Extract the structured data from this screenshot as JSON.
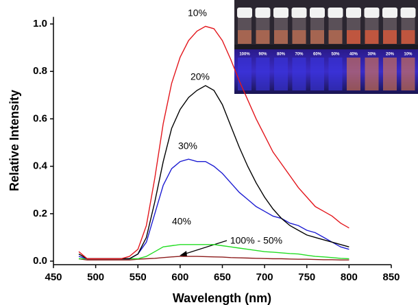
{
  "chart_data": {
    "type": "line",
    "xlabel": "Wavelength (nm)",
    "ylabel": "Relative Intensity",
    "xlim": [
      450,
      850
    ],
    "xticks": [
      450,
      500,
      550,
      600,
      650,
      700,
      750,
      800,
      850
    ],
    "ylim": [
      -0.015,
      1.03
    ],
    "yticks": [
      {
        "value": 0,
        "label": "0.0"
      },
      0.2,
      0.4,
      0.6,
      0.8,
      {
        "value": 1,
        "label": "1.0"
      }
    ],
    "grid": false,
    "x": [
      480,
      490,
      500,
      510,
      520,
      530,
      540,
      550,
      560,
      570,
      580,
      590,
      600,
      610,
      620,
      630,
      640,
      650,
      660,
      670,
      680,
      690,
      700,
      710,
      720,
      730,
      740,
      750,
      760,
      770,
      780,
      790,
      800
    ],
    "series": [
      {
        "name": "10%",
        "color": "#e3161c",
        "values": [
          0.04,
          0.01,
          0.01,
          0.01,
          0.01,
          0.01,
          0.02,
          0.05,
          0.15,
          0.35,
          0.58,
          0.75,
          0.86,
          0.93,
          0.97,
          0.99,
          0.98,
          0.93,
          0.85,
          0.76,
          0.68,
          0.6,
          0.53,
          0.46,
          0.41,
          0.36,
          0.31,
          0.27,
          0.23,
          0.21,
          0.19,
          0.16,
          0.14
        ]
      },
      {
        "name": "20%",
        "color": "#000000",
        "values": [
          0.03,
          0.01,
          0.01,
          0.01,
          0.01,
          0.01,
          0.01,
          0.03,
          0.1,
          0.25,
          0.42,
          0.56,
          0.64,
          0.69,
          0.72,
          0.74,
          0.72,
          0.66,
          0.57,
          0.48,
          0.4,
          0.33,
          0.27,
          0.22,
          0.18,
          0.15,
          0.13,
          0.11,
          0.1,
          0.09,
          0.08,
          0.07,
          0.06
        ]
      },
      {
        "name": "30%",
        "color": "#1c1cd2",
        "values": [
          0.02,
          0.01,
          0.01,
          0.01,
          0.01,
          0.01,
          0.01,
          0.03,
          0.08,
          0.2,
          0.32,
          0.39,
          0.42,
          0.43,
          0.42,
          0.42,
          0.4,
          0.37,
          0.33,
          0.29,
          0.26,
          0.23,
          0.21,
          0.19,
          0.18,
          0.16,
          0.15,
          0.13,
          0.12,
          0.1,
          0.08,
          0.06,
          0.05
        ]
      },
      {
        "name": "40%",
        "color": "#22dd22",
        "values": [
          0.01,
          0.01,
          0.01,
          0.01,
          0.01,
          0.01,
          0.01,
          0.01,
          0.02,
          0.04,
          0.06,
          0.065,
          0.07,
          0.07,
          0.07,
          0.07,
          0.07,
          0.065,
          0.06,
          0.055,
          0.05,
          0.045,
          0.04,
          0.038,
          0.035,
          0.032,
          0.03,
          0.025,
          0.02,
          0.018,
          0.015,
          0.012,
          0.01
        ]
      },
      {
        "name": "100% - 50%",
        "color": "#8b1a1a",
        "values": [
          0.01,
          0.005,
          0.005,
          0.005,
          0.005,
          0.005,
          0.005,
          0.008,
          0.01,
          0.012,
          0.015,
          0.018,
          0.02,
          0.02,
          0.02,
          0.019,
          0.018,
          0.017,
          0.015,
          0.014,
          0.013,
          0.012,
          0.011,
          0.01,
          0.01,
          0.009,
          0.008,
          0.008,
          0.007,
          0.006,
          0.006,
          0.005,
          0.005
        ]
      }
    ]
  },
  "inset": {
    "labels": [
      "100%",
      "90%",
      "80%",
      "70%",
      "60%",
      "50%",
      "40%",
      "30%",
      "20%",
      "10%"
    ]
  }
}
